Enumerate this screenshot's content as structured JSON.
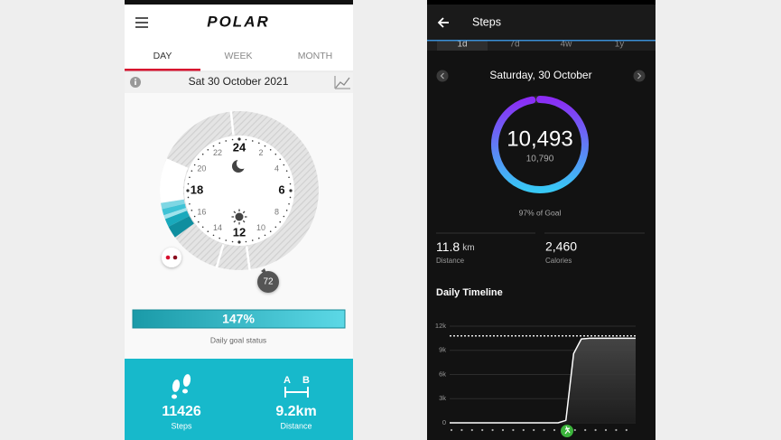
{
  "left_app": {
    "brand": "POLAR",
    "tabs": [
      "DAY",
      "WEEK",
      "MONTH"
    ],
    "date": "Sat 30 October 2021",
    "dial_labels": [
      "24",
      "2",
      "4",
      "6",
      "8",
      "10",
      "12",
      "14",
      "16",
      "18",
      "20",
      "22"
    ],
    "marker": "72",
    "goal_status": "147%",
    "goal_status_label": "Daily goal status",
    "steps": "11426",
    "steps_label": "Steps",
    "distance_markers": [
      "A",
      "B"
    ],
    "distance": "9.2km",
    "distance_label": "Distance"
  },
  "right_app": {
    "title": "Steps",
    "ranges": [
      "1d",
      "7d",
      "4w",
      "1y"
    ],
    "date": "Saturday, 30 October",
    "steps": {
      "value": 10493,
      "label": "10,493"
    },
    "goal": {
      "value": 10790,
      "label": "10,790"
    },
    "goal_percent": "97% of Goal",
    "distance": {
      "value": "11.8",
      "unit": "km",
      "label": "Distance"
    },
    "calories": {
      "value": "2,460",
      "label": "Calories"
    },
    "timeline": {
      "type": "line",
      "title": "Daily Timeline",
      "x": [
        0,
        1,
        2,
        3,
        4,
        5,
        6,
        7,
        8,
        9,
        10,
        11,
        12,
        13,
        14,
        15,
        16,
        17,
        18,
        19,
        20,
        21,
        22,
        23,
        24
      ],
      "values": [
        0,
        0,
        0,
        0,
        0,
        0,
        0,
        0,
        0,
        0,
        0,
        0,
        0,
        0,
        0,
        300,
        8600,
        10420,
        10493,
        10493,
        10493,
        10493,
        10493,
        10493,
        10493
      ],
      "xlim": [
        0,
        24
      ],
      "ylim": [
        0,
        12000
      ],
      "yticks": [
        0,
        {
          "value": 3000,
          "label": "3k"
        },
        {
          "value": 6000,
          "label": "6k"
        },
        {
          "value": 9000,
          "label": "9k"
        },
        {
          "value": 12000,
          "label": "12k"
        }
      ]
    }
  }
}
